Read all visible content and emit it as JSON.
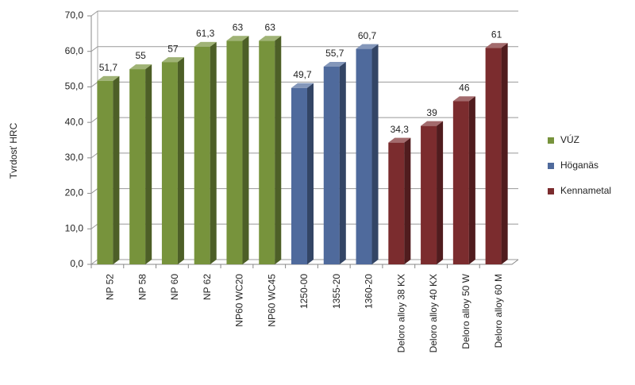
{
  "chart_data": {
    "type": "bar3d",
    "y_label": "Tvrdosť HRC",
    "categories": [
      "NP 52",
      "NP 58",
      "NP 60",
      "NP 62",
      "NP60 WC20",
      "NP60 WC45",
      "1250-00",
      "1355-20",
      "1360-20",
      "Deloro alloy 38 KX",
      "Deloro alloy 40 KX",
      "Deloro alloy 50 W",
      "Deloro alloy 60 M"
    ],
    "series": [
      {
        "name": "VÚZ",
        "color": "#77933c",
        "values": [
          51.7,
          55,
          57,
          61.3,
          63,
          63,
          null,
          null,
          null,
          null,
          null,
          null,
          null
        ],
        "value_labels": [
          "51,7",
          "55",
          "57",
          "61,3",
          "63",
          "63",
          null,
          null,
          null,
          null,
          null,
          null,
          null
        ]
      },
      {
        "name": "Höganäs",
        "color": "#4f6a9c",
        "values": [
          null,
          null,
          null,
          null,
          null,
          null,
          49.7,
          55.7,
          60.7,
          null,
          null,
          null,
          null
        ],
        "value_labels": [
          null,
          null,
          null,
          null,
          null,
          null,
          "49,7",
          "55,7",
          "60,7",
          null,
          null,
          null,
          null
        ]
      },
      {
        "name": "Kennametal",
        "color": "#7b2c2e",
        "values": [
          null,
          null,
          null,
          null,
          null,
          null,
          null,
          null,
          null,
          34.3,
          39,
          46,
          61
        ],
        "value_labels": [
          null,
          null,
          null,
          null,
          null,
          null,
          null,
          null,
          null,
          "34,3",
          "39",
          "46",
          "61"
        ]
      }
    ],
    "ylim": [
      0,
      70
    ],
    "yticks": [
      {
        "value": 0,
        "label": "0,0"
      },
      {
        "value": 10,
        "label": "10,0"
      },
      {
        "value": 20,
        "label": "20,0"
      },
      {
        "value": 30,
        "label": "30,0"
      },
      {
        "value": 40,
        "label": "40,0"
      },
      {
        "value": 50,
        "label": "50,0"
      },
      {
        "value": 60,
        "label": "60,0"
      },
      {
        "value": 70,
        "label": "70,0"
      }
    ],
    "grid": true,
    "legend": "right"
  }
}
